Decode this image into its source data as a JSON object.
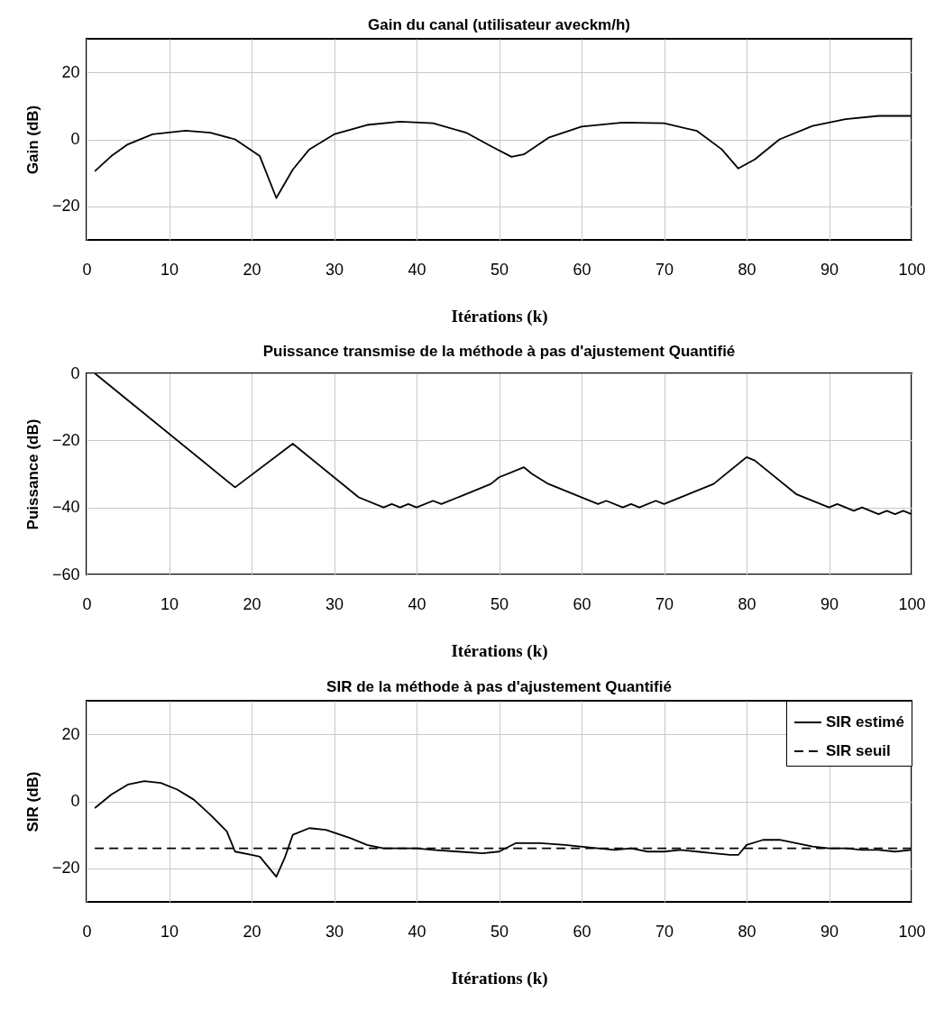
{
  "chart_data": [
    {
      "type": "line",
      "title": "Gain du canal (utilisateur aveckm/h)",
      "xlabel": "Itérations (k)",
      "ylabel": "Gain (dB)",
      "xlim": [
        0,
        100
      ],
      "xticks": [
        0,
        10,
        20,
        30,
        40,
        50,
        60,
        70,
        80,
        90,
        100
      ],
      "ylim": [
        -30,
        30
      ],
      "yticks": [
        -20,
        0,
        20
      ],
      "grid": true,
      "series": [
        {
          "color": "#000000",
          "line_style": "solid",
          "x": [
            1,
            3,
            5,
            8,
            12,
            15,
            18,
            21,
            23,
            25,
            27,
            30,
            34,
            38,
            42,
            46,
            49,
            51.5,
            53,
            56,
            60,
            65,
            70,
            74,
            77,
            79,
            81,
            84,
            88,
            92,
            96,
            100
          ],
          "values": [
            -9.5,
            -5,
            -1.5,
            1.5,
            2.6,
            2,
            0,
            -5,
            -17.5,
            -9,
            -3,
            1.5,
            4.3,
            5.3,
            4.8,
            2,
            -2,
            -5.2,
            -4.5,
            0.5,
            3.8,
            5,
            4.8,
            2.5,
            -3,
            -8.7,
            -6,
            0,
            4,
            6,
            7,
            7
          ]
        }
      ]
    },
    {
      "type": "line",
      "title": "Puissance transmise de la méthode à pas d'ajustement Quantifié",
      "xlabel": "Itérations (k)",
      "ylabel": "Puissance (dB)",
      "xlim": [
        0,
        100
      ],
      "xticks": [
        0,
        10,
        20,
        30,
        40,
        50,
        60,
        70,
        80,
        90,
        100
      ],
      "ylim": [
        -60,
        0
      ],
      "yticks": [
        -60,
        -40,
        -20,
        0
      ],
      "grid": true,
      "series": [
        {
          "color": "#000000",
          "line_style": "solid",
          "x": [
            1,
            18,
            25,
            33,
            36,
            37,
            38,
            39,
            40,
            42,
            43,
            49,
            50,
            53,
            54,
            56,
            62,
            63,
            65,
            66,
            67,
            69,
            70,
            76,
            80,
            81,
            86,
            90,
            91,
            93,
            94,
            96,
            97,
            98,
            99,
            100
          ],
          "values": [
            0,
            -34,
            -21,
            -37,
            -40,
            -39,
            -40,
            -39,
            -40,
            -38,
            -39,
            -33,
            -31,
            -28,
            -30,
            -33,
            -39,
            -38,
            -40,
            -39,
            -40,
            -38,
            -39,
            -33,
            -25,
            -26,
            -36,
            -40,
            -39,
            -41,
            -40,
            -42,
            -41,
            -42,
            -41,
            -42
          ]
        }
      ]
    },
    {
      "type": "line",
      "title": "SIR de la méthode à pas d'ajustement Quantifié",
      "xlabel": "Itérations (k)",
      "ylabel": "SIR (dB)",
      "xlim": [
        0,
        100
      ],
      "xticks": [
        0,
        10,
        20,
        30,
        40,
        50,
        60,
        70,
        80,
        90,
        100
      ],
      "ylim": [
        -30,
        30
      ],
      "yticks": [
        -20,
        0,
        20
      ],
      "grid": true,
      "legend": "top right",
      "series": [
        {
          "name": "SIR estimé",
          "color": "#000000",
          "line_style": "solid",
          "x": [
            1,
            3,
            5,
            7,
            9,
            11,
            13,
            15,
            17,
            18,
            20,
            21,
            23,
            24,
            25,
            27,
            29,
            32,
            34,
            36,
            38,
            40,
            42,
            45,
            48,
            50,
            52,
            55,
            58,
            62,
            64,
            66,
            68,
            70,
            72,
            74,
            76,
            78,
            79,
            80,
            82,
            84,
            86,
            88,
            90,
            92,
            94,
            96,
            98,
            100
          ],
          "values": [
            -2,
            2,
            5,
            6,
            5.5,
            3.5,
            0.5,
            -4,
            -9,
            -15,
            -16,
            -16.5,
            -22.5,
            -17,
            -10,
            -8,
            -8.5,
            -11,
            -13,
            -14,
            -14,
            -14,
            -14.5,
            -15,
            -15.5,
            -15,
            -12.5,
            -12.5,
            -13,
            -14,
            -14.5,
            -14,
            -15,
            -15,
            -14.5,
            -15,
            -15.5,
            -16,
            -16,
            -13,
            -11.5,
            -11.5,
            -12.5,
            -13.5,
            -14,
            -14,
            -14.5,
            -14.5,
            -15,
            -14.5
          ]
        },
        {
          "name": "SIR seuil",
          "color": "#000000",
          "line_style": "dashed",
          "x": [
            1,
            100
          ],
          "values": [
            -14,
            -14
          ]
        }
      ]
    }
  ]
}
